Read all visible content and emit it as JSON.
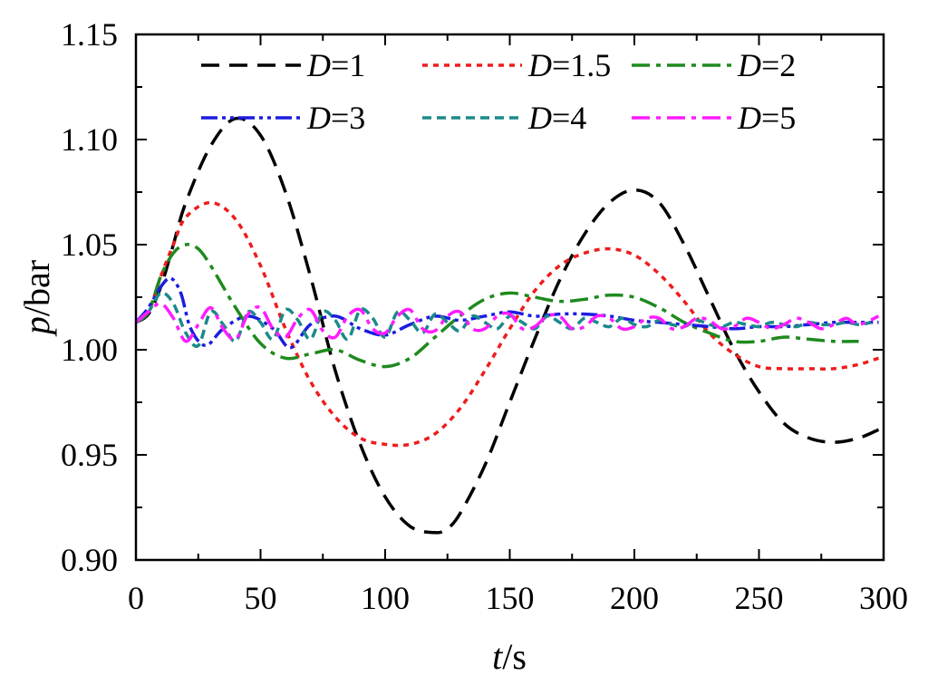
{
  "chart_data": {
    "type": "line",
    "title": "",
    "xlabel": {
      "var": "t",
      "unit": "/s"
    },
    "ylabel": {
      "var": "p",
      "unit": "/bar"
    },
    "xlim": [
      0,
      300
    ],
    "ylim": [
      0.9,
      1.15
    ],
    "xticks": [
      0,
      50,
      100,
      150,
      200,
      250,
      300
    ],
    "xtick_labels": [
      "0",
      "50",
      "100",
      "150",
      "200",
      "250",
      "300"
    ],
    "yticks": [
      0.9,
      0.95,
      1.0,
      1.05,
      1.1,
      1.15
    ],
    "ytick_labels": [
      "0.90",
      "0.95",
      "1.00",
      "1.05",
      "1.10",
      "1.15"
    ],
    "grid": false,
    "legend_position": "top",
    "series": [
      {
        "name": "D=1",
        "var": "D",
        "value": "1",
        "color": "#000000",
        "dash": "dash",
        "x": [
          0,
          5,
          10,
          15,
          20,
          30,
          40,
          50,
          60,
          70,
          80,
          90,
          100,
          110,
          120,
          125,
          130,
          140,
          150,
          160,
          170,
          180,
          190,
          200,
          210,
          220,
          230,
          240,
          250,
          260,
          270,
          280,
          290,
          298
        ],
        "y": [
          1.013,
          1.017,
          1.03,
          1.05,
          1.07,
          1.097,
          1.11,
          1.102,
          1.075,
          1.035,
          0.99,
          0.955,
          0.93,
          0.916,
          0.913,
          0.915,
          0.922,
          0.945,
          0.975,
          1.005,
          1.033,
          1.055,
          1.07,
          1.076,
          1.07,
          1.05,
          1.025,
          1.0,
          0.98,
          0.965,
          0.958,
          0.956,
          0.958,
          0.962
        ]
      },
      {
        "name": "D=1.5",
        "var": "D",
        "value": "1.5",
        "color": "#ee1c1c",
        "dash": "dot",
        "x": [
          0,
          5,
          10,
          15,
          20,
          30,
          40,
          50,
          60,
          70,
          80,
          90,
          100,
          110,
          120,
          130,
          140,
          150,
          160,
          170,
          180,
          190,
          200,
          210,
          220,
          230,
          240,
          250,
          260,
          270,
          280,
          290,
          298
        ],
        "y": [
          1.013,
          1.018,
          1.035,
          1.05,
          1.063,
          1.07,
          1.062,
          1.04,
          1.01,
          0.985,
          0.968,
          0.958,
          0.955,
          0.955,
          0.96,
          0.972,
          0.99,
          1.01,
          1.028,
          1.04,
          1.046,
          1.048,
          1.045,
          1.036,
          1.023,
          1.008,
          0.998,
          0.992,
          0.991,
          0.991,
          0.991,
          0.993,
          0.996
        ]
      },
      {
        "name": "D=2",
        "var": "D",
        "value": "2",
        "color": "#1e8a1e",
        "dash": "dashdot",
        "x": [
          0,
          5,
          10,
          15,
          20,
          25,
          30,
          40,
          50,
          60,
          70,
          80,
          90,
          100,
          110,
          120,
          130,
          140,
          150,
          160,
          170,
          180,
          190,
          200,
          210,
          220,
          230,
          240,
          250,
          260,
          270,
          280,
          290
        ],
        "y": [
          1.013,
          1.018,
          1.035,
          1.046,
          1.05,
          1.048,
          1.04,
          1.02,
          1.003,
          0.996,
          0.998,
          1.0,
          0.995,
          0.992,
          0.996,
          1.006,
          1.016,
          1.024,
          1.027,
          1.025,
          1.023,
          1.024,
          1.026,
          1.025,
          1.02,
          1.013,
          1.008,
          1.004,
          1.004,
          1.006,
          1.005,
          1.004,
          1.004
        ]
      },
      {
        "name": "D=3",
        "var": "D",
        "value": "3",
        "color": "#1c1ce0",
        "dash": "dashdotdot",
        "x": [
          0,
          5,
          10,
          14,
          18,
          22,
          28,
          35,
          45,
          55,
          62,
          70,
          80,
          90,
          100,
          110,
          120,
          130,
          140,
          150,
          160,
          170,
          180,
          190,
          200,
          210,
          220,
          230,
          240,
          250,
          260,
          270,
          280,
          290,
          298
        ],
        "y": [
          1.013,
          1.02,
          1.03,
          1.034,
          1.027,
          1.01,
          1.002,
          1.01,
          1.016,
          1.01,
          1.001,
          1.012,
          1.016,
          1.01,
          1.007,
          1.012,
          1.016,
          1.014,
          1.016,
          1.018,
          1.016,
          1.017,
          1.017,
          1.016,
          1.014,
          1.013,
          1.012,
          1.011,
          1.01,
          1.011,
          1.011,
          1.012,
          1.013,
          1.013,
          1.013
        ]
      },
      {
        "name": "D=4",
        "var": "D",
        "value": "4",
        "color": "#1a8a8a",
        "dash": "shortdash",
        "x": [
          0,
          5,
          10,
          15,
          20,
          25,
          30,
          35,
          40,
          45,
          50,
          55,
          60,
          65,
          70,
          75,
          80,
          85,
          90,
          95,
          100,
          105,
          110,
          115,
          120,
          125,
          130,
          135,
          140,
          145,
          150,
          155,
          160,
          165,
          170,
          175,
          180,
          185,
          190,
          195,
          200,
          205,
          210,
          215,
          220,
          225,
          230,
          235,
          240,
          245,
          250,
          255,
          260,
          265,
          270,
          275,
          280,
          285,
          290,
          295
        ],
        "y": [
          1.013,
          1.018,
          1.027,
          1.022,
          1.008,
          1.002,
          1.018,
          1.012,
          1.004,
          1.018,
          1.013,
          1.005,
          1.019,
          1.014,
          1.005,
          1.018,
          1.014,
          1.005,
          1.019,
          1.015,
          1.006,
          1.018,
          1.014,
          1.008,
          1.017,
          1.013,
          1.009,
          1.016,
          1.013,
          1.01,
          1.016,
          1.013,
          1.01,
          1.016,
          1.013,
          1.01,
          1.015,
          1.013,
          1.011,
          1.015,
          1.012,
          1.011,
          1.014,
          1.012,
          1.011,
          1.014,
          1.012,
          1.011,
          1.013,
          1.012,
          1.011,
          1.013,
          1.012,
          1.011,
          1.013,
          1.012,
          1.012,
          1.013,
          1.012,
          1.013
        ]
      },
      {
        "name": "D=5",
        "var": "D",
        "value": "5",
        "color": "#ff1cff",
        "dash": "dashdot",
        "x": [
          0,
          5,
          10,
          15,
          20,
          25,
          30,
          35,
          40,
          45,
          50,
          55,
          60,
          65,
          70,
          75,
          80,
          85,
          90,
          95,
          100,
          105,
          110,
          115,
          120,
          125,
          130,
          135,
          140,
          145,
          150,
          155,
          160,
          165,
          170,
          175,
          180,
          185,
          190,
          195,
          200,
          205,
          210,
          215,
          220,
          225,
          230,
          235,
          240,
          245,
          250,
          255,
          260,
          265,
          270,
          275,
          280,
          285,
          290,
          298
        ],
        "y": [
          1.013,
          1.018,
          1.022,
          1.015,
          1.004,
          1.012,
          1.02,
          1.01,
          1.005,
          1.017,
          1.02,
          1.01,
          1.006,
          1.015,
          1.019,
          1.009,
          1.006,
          1.016,
          1.019,
          1.01,
          1.008,
          1.016,
          1.019,
          1.01,
          1.009,
          1.016,
          1.018,
          1.01,
          1.01,
          1.016,
          1.017,
          1.01,
          1.011,
          1.016,
          1.016,
          1.01,
          1.011,
          1.016,
          1.015,
          1.01,
          1.011,
          1.015,
          1.015,
          1.01,
          1.011,
          1.015,
          1.014,
          1.01,
          1.011,
          1.015,
          1.013,
          1.01,
          1.012,
          1.015,
          1.013,
          1.01,
          1.012,
          1.015,
          1.012,
          1.016
        ]
      }
    ]
  }
}
